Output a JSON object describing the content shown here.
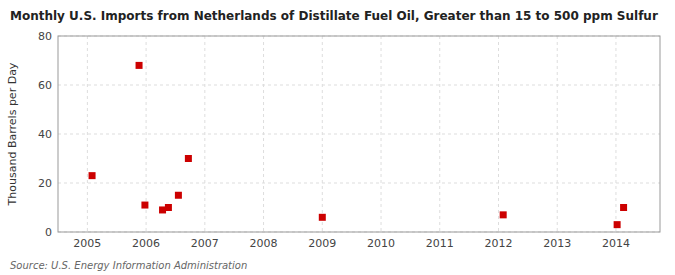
{
  "chart_data": {
    "type": "scatter",
    "title": "Monthly U.S. Imports from Netherlands of Distillate Fuel Oil, Greater than 15 to 500 ppm Sulfur",
    "y_label": "Thousand Barrels per Day",
    "annotations": [
      "Source: U.S. Energy Information Administration"
    ],
    "x": [
      2005.08,
      2005.88,
      2005.98,
      2006.28,
      2006.38,
      2006.55,
      2006.72,
      2009.0,
      2012.08,
      2014.02,
      2014.13
    ],
    "values": [
      23,
      68,
      11,
      9,
      10,
      15,
      30,
      6,
      7,
      3,
      10
    ],
    "color": "#cc0000",
    "marker": "square",
    "xlim": [
      2004.5,
      2014.75
    ],
    "ylim": [
      0,
      80
    ],
    "xticks": [
      2005,
      2006,
      2007,
      2008,
      2009,
      2010,
      2011,
      2012,
      2013,
      2014
    ],
    "yticks": [
      0,
      20,
      40,
      60,
      80
    ],
    "grid": true
  }
}
